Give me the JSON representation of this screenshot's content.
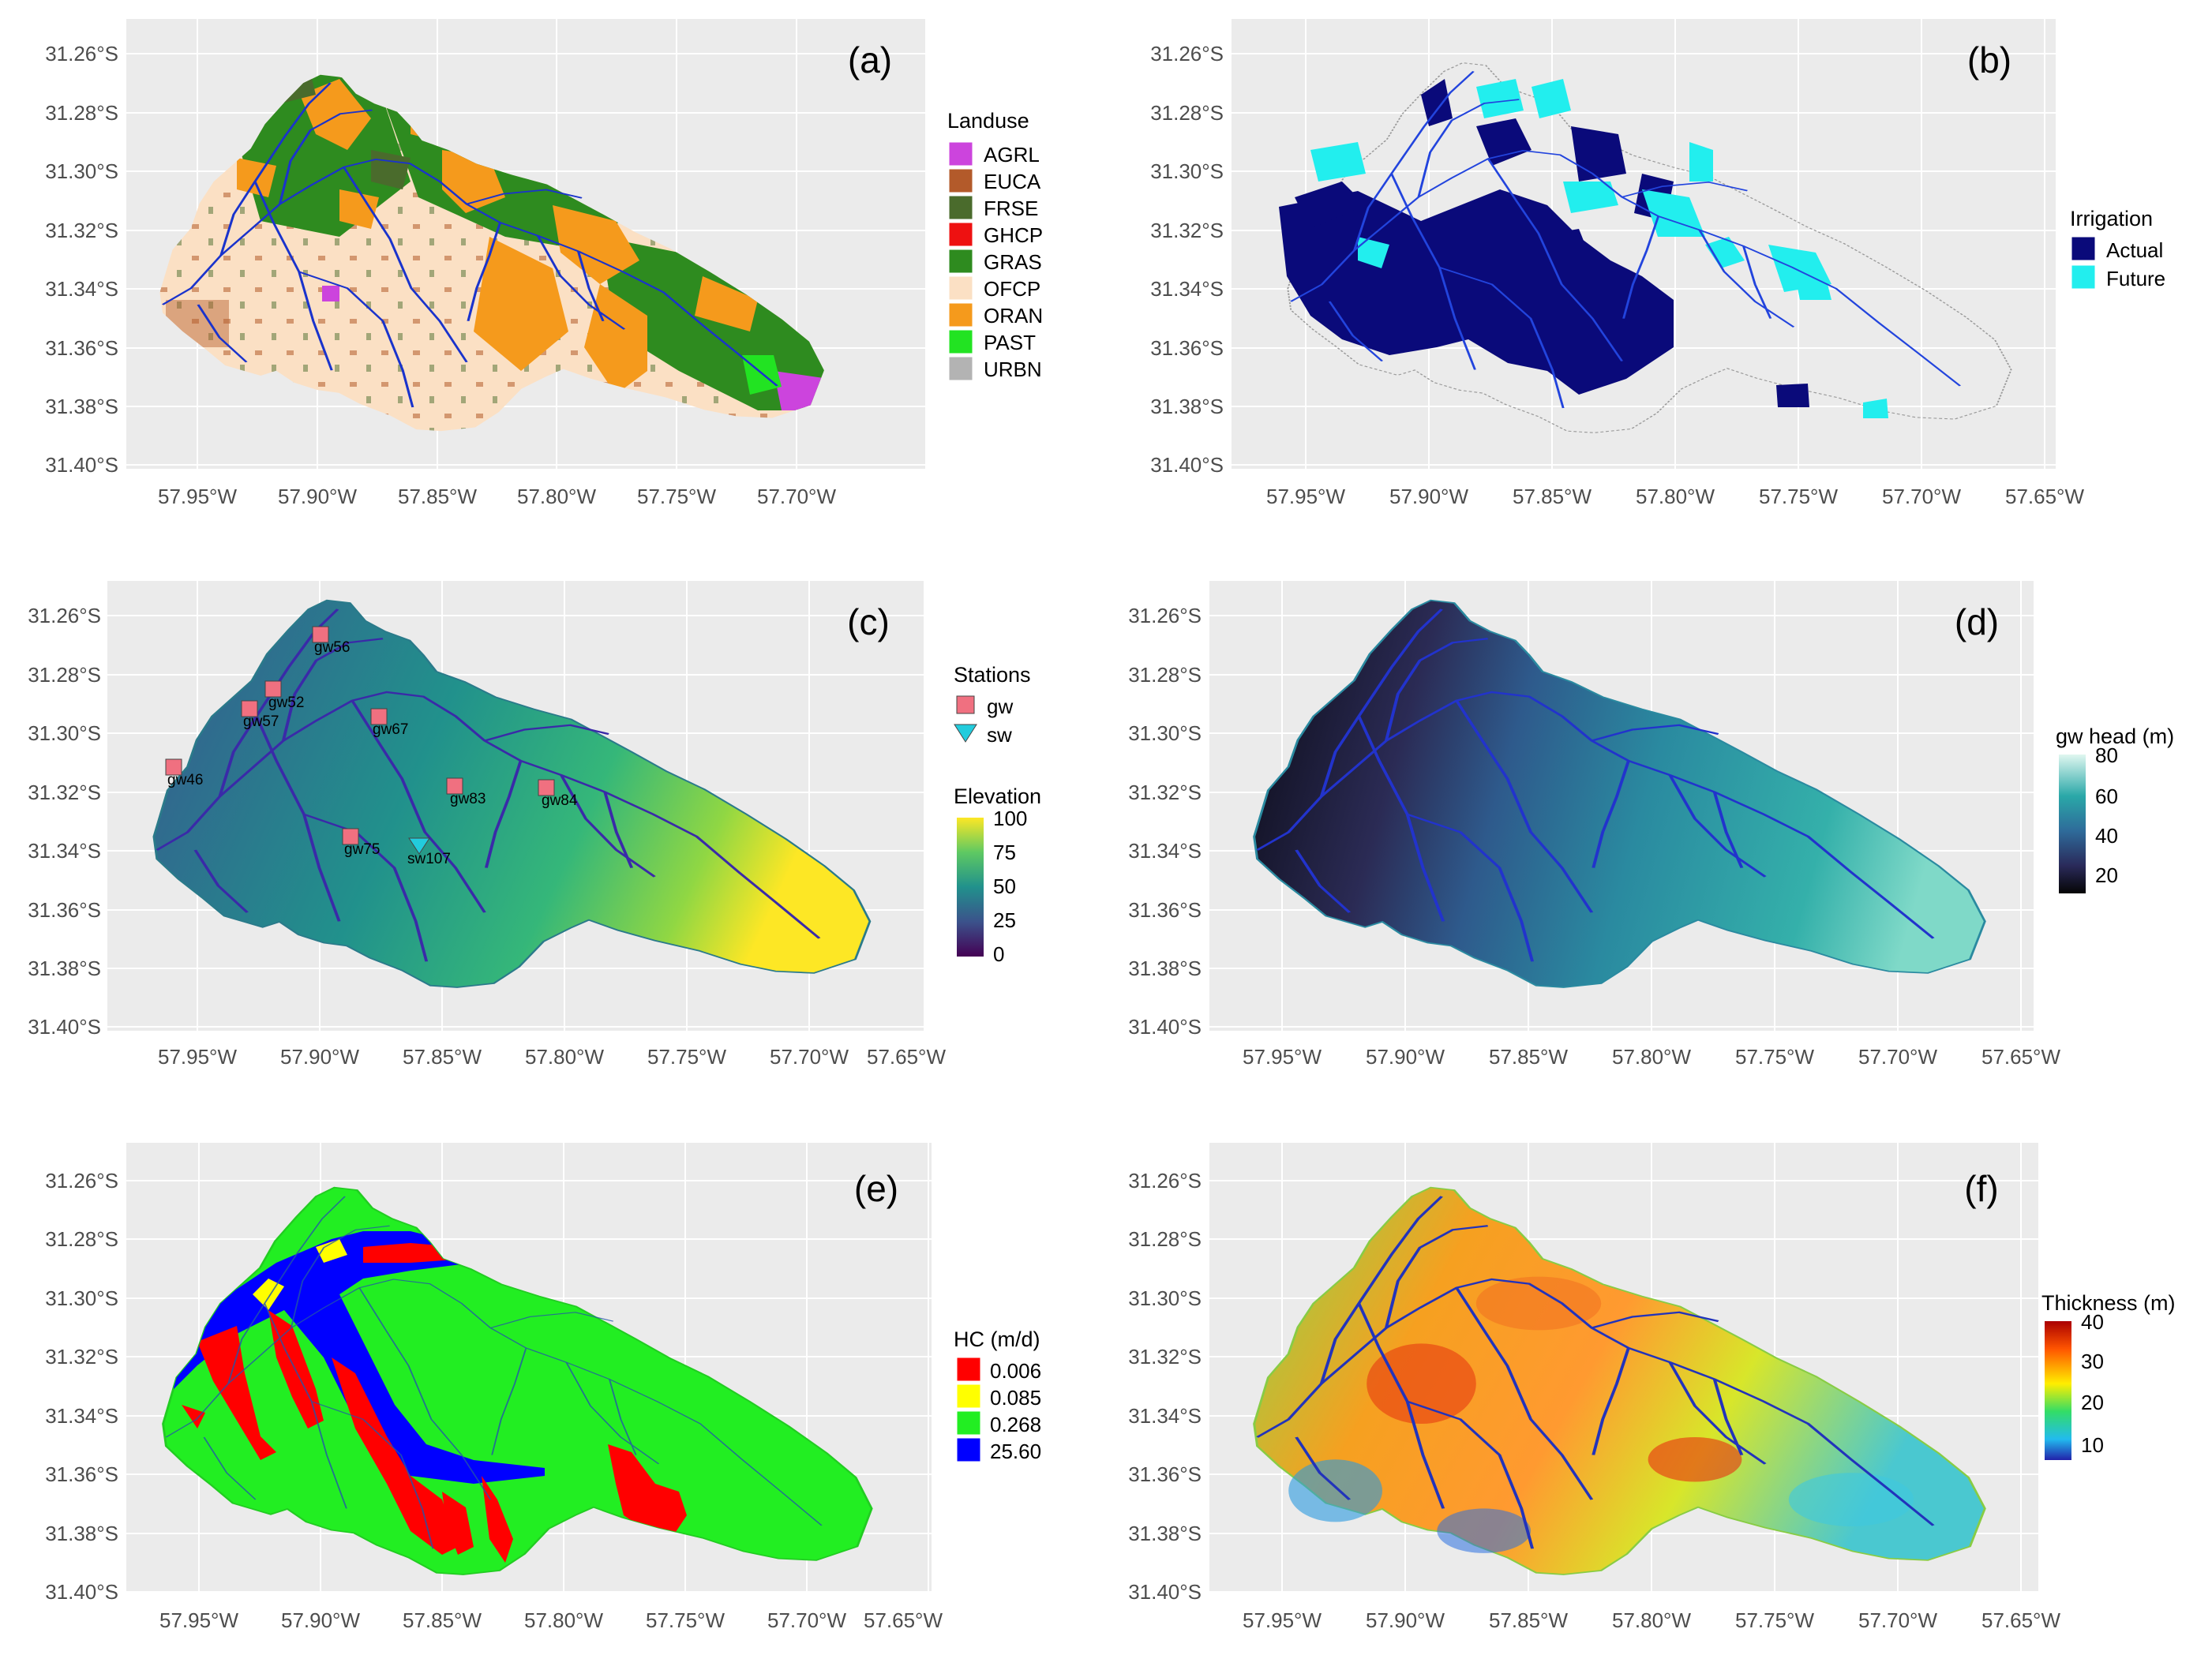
{
  "panels": [
    {
      "id": "a",
      "label": "(a)",
      "y_ticks": [
        "31.26°S",
        "31.28°S",
        "31.30°S",
        "31.32°S",
        "31.34°S",
        "31.36°S",
        "31.38°S",
        "31.40°S"
      ],
      "x_ticks": [
        "57.95°W",
        "57.90°W",
        "57.85°W",
        "57.80°W",
        "57.75°W",
        "57.70°W"
      ],
      "legend": {
        "title": "Landuse",
        "items": [
          {
            "label": "AGRL",
            "color": "#cc44dd"
          },
          {
            "label": "EUCA",
            "color": "#b35a2a"
          },
          {
            "label": "FRSE",
            "color": "#4a6b2c"
          },
          {
            "label": "GHCP",
            "color": "#ee1111"
          },
          {
            "label": "GRAS",
            "color": "#2e8b1f"
          },
          {
            "label": "OFCP",
            "color": "#fbe0c4"
          },
          {
            "label": "ORAN",
            "color": "#f59a1c"
          },
          {
            "label": "PAST",
            "color": "#22e322"
          },
          {
            "label": "URBN",
            "color": "#b3b3b3"
          }
        ]
      }
    },
    {
      "id": "b",
      "label": "(b)",
      "y_ticks": [
        "31.26°S",
        "31.28°S",
        "31.30°S",
        "31.32°S",
        "31.34°S",
        "31.36°S",
        "31.38°S",
        "31.40°S"
      ],
      "x_ticks": [
        "57.95°W",
        "57.90°W",
        "57.85°W",
        "57.80°W",
        "57.75°W",
        "57.70°W",
        "57.65°W"
      ],
      "legend": {
        "title": "Irrigation",
        "items": [
          {
            "label": "Actual",
            "color": "#0a0a7a"
          },
          {
            "label": "Future",
            "color": "#22eeee"
          }
        ]
      }
    },
    {
      "id": "c",
      "label": "(c)",
      "y_ticks": [
        "31.26°S",
        "31.28°S",
        "31.30°S",
        "31.32°S",
        "31.34°S",
        "31.36°S",
        "31.38°S",
        "31.40°S"
      ],
      "x_ticks": [
        "57.95°W",
        "57.90°W",
        "57.85°W",
        "57.80°W",
        "57.75°W",
        "57.70°W",
        "57.65°W"
      ],
      "legend": {
        "title": "Stations",
        "items": [
          {
            "label": "gw",
            "color": "#f07080"
          },
          {
            "label": "sw",
            "color": "#22ccdd"
          }
        ],
        "colorbar_title": "Elevation",
        "colorbar_ticks": [
          "100",
          "75",
          "50",
          "25",
          "0"
        ],
        "colorbar_colors": [
          "#fde725",
          "#5ec962",
          "#21918c",
          "#3b528b",
          "#440154"
        ]
      },
      "stations": [
        {
          "label": "gw56",
          "type": "gw"
        },
        {
          "label": "gw52",
          "type": "gw"
        },
        {
          "label": "gw57",
          "type": "gw"
        },
        {
          "label": "gw67",
          "type": "gw"
        },
        {
          "label": "gw46",
          "type": "gw"
        },
        {
          "label": "gw83",
          "type": "gw"
        },
        {
          "label": "gw84",
          "type": "gw"
        },
        {
          "label": "gw75",
          "type": "gw"
        },
        {
          "label": "sw107",
          "type": "sw"
        }
      ]
    },
    {
      "id": "d",
      "label": "(d)",
      "y_ticks": [
        "31.26°S",
        "31.28°S",
        "31.30°S",
        "31.32°S",
        "31.34°S",
        "31.36°S",
        "31.38°S",
        "31.40°S"
      ],
      "x_ticks": [
        "57.95°W",
        "57.90°W",
        "57.85°W",
        "57.80°W",
        "57.75°W",
        "57.70°W",
        "57.65°W"
      ],
      "legend": {
        "colorbar_title": "gw head (m)",
        "colorbar_ticks": [
          "80",
          "60",
          "40",
          "20"
        ],
        "colorbar_colors": [
          "#e0f7f0",
          "#2aa8a8",
          "#2e6b9a",
          "#2a2a5a",
          "#050505"
        ]
      }
    },
    {
      "id": "e",
      "label": "(e)",
      "y_ticks": [
        "31.26°S",
        "31.28°S",
        "31.30°S",
        "31.32°S",
        "31.34°S",
        "31.36°S",
        "31.38°S",
        "31.40°S"
      ],
      "x_ticks": [
        "57.95°W",
        "57.90°W",
        "57.85°W",
        "57.80°W",
        "57.75°W",
        "57.70°W",
        "57.65°W"
      ],
      "legend": {
        "title": "HC (m/d)",
        "items": [
          {
            "label": "0.006",
            "color": "#ff0000"
          },
          {
            "label": "0.085",
            "color": "#ffff00"
          },
          {
            "label": "0.268",
            "color": "#22ee22"
          },
          {
            "label": "25.60",
            "color": "#0000ff"
          }
        ]
      }
    },
    {
      "id": "f",
      "label": "(f)",
      "y_ticks": [
        "31.26°S",
        "31.28°S",
        "31.30°S",
        "31.32°S",
        "31.34°S",
        "31.36°S",
        "31.38°S",
        "31.40°S"
      ],
      "x_ticks": [
        "57.95°W",
        "57.90°W",
        "57.85°W",
        "57.80°W",
        "57.75°W",
        "57.70°W",
        "57.65°W"
      ],
      "legend": {
        "colorbar_title": "Thickness (m)",
        "colorbar_ticks": [
          "40",
          "30",
          "20",
          "10"
        ],
        "colorbar_colors": [
          "#aa0000",
          "#ff5500",
          "#ffee00",
          "#33dd66",
          "#22bbee",
          "#2222aa"
        ]
      }
    }
  ]
}
